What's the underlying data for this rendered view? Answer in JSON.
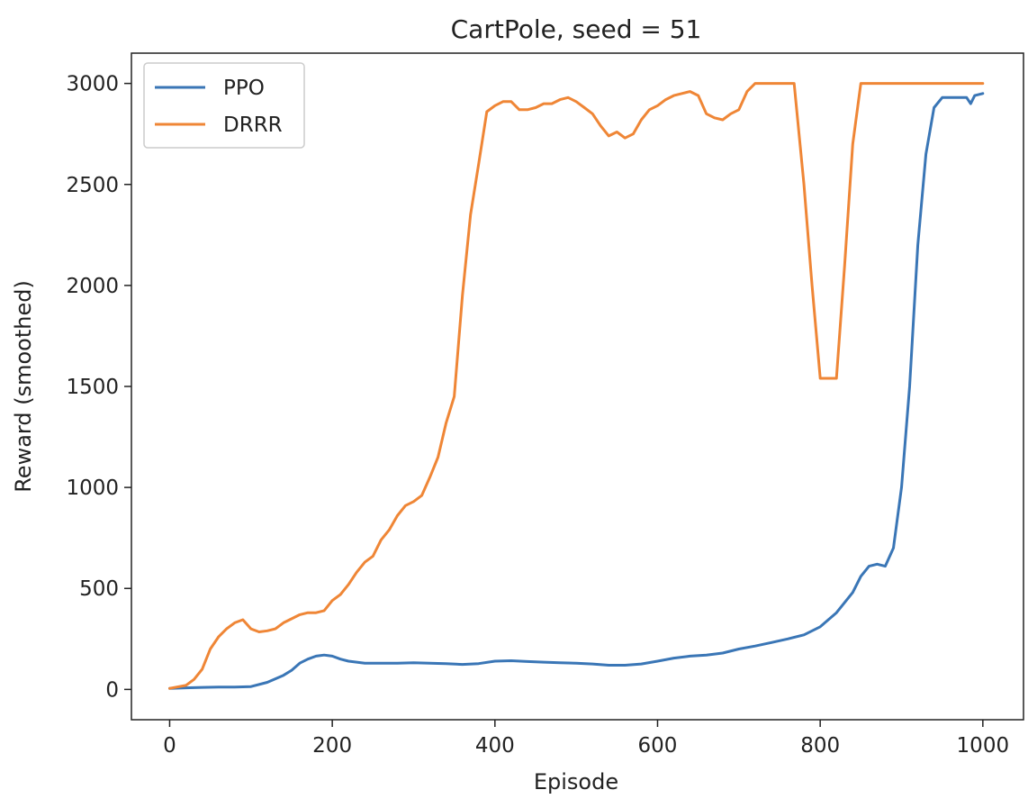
{
  "chart_data": {
    "type": "line",
    "title": "CartPole, seed = 51",
    "xlabel": "Episode",
    "ylabel": "Reward (smoothed)",
    "xlim": [
      -47,
      1050
    ],
    "ylim": [
      -150,
      3150
    ],
    "xticks": [
      0,
      200,
      400,
      600,
      800,
      1000
    ],
    "yticks": [
      0,
      500,
      1000,
      1500,
      2000,
      2500,
      3000
    ],
    "grid": false,
    "legend_position": "top-left",
    "series": [
      {
        "name": "PPO",
        "color": "#3a76b6",
        "x": [
          0,
          20,
          40,
          60,
          80,
          100,
          120,
          140,
          150,
          160,
          170,
          180,
          190,
          200,
          210,
          220,
          240,
          260,
          280,
          300,
          320,
          340,
          360,
          380,
          400,
          420,
          440,
          460,
          480,
          500,
          520,
          540,
          560,
          580,
          600,
          620,
          640,
          660,
          680,
          700,
          720,
          740,
          760,
          780,
          800,
          820,
          840,
          850,
          860,
          870,
          880,
          890,
          900,
          910,
          920,
          930,
          940,
          950,
          960,
          970,
          980,
          985,
          990,
          1000
        ],
        "values": [
          5,
          8,
          10,
          12,
          12,
          14,
          35,
          70,
          95,
          130,
          150,
          165,
          170,
          165,
          150,
          140,
          130,
          130,
          130,
          132,
          130,
          128,
          124,
          128,
          140,
          142,
          138,
          135,
          132,
          130,
          126,
          120,
          120,
          126,
          140,
          155,
          165,
          170,
          180,
          200,
          215,
          232,
          250,
          270,
          310,
          380,
          480,
          560,
          610,
          620,
          610,
          700,
          1000,
          1500,
          2200,
          2650,
          2880,
          2930,
          2930,
          2930,
          2930,
          2900,
          2940,
          2950
        ]
      },
      {
        "name": "DRRR",
        "color": "#ef8636",
        "x": [
          0,
          20,
          30,
          40,
          50,
          60,
          70,
          80,
          90,
          100,
          110,
          120,
          130,
          140,
          150,
          160,
          170,
          180,
          190,
          200,
          210,
          220,
          230,
          240,
          250,
          260,
          270,
          280,
          290,
          300,
          310,
          320,
          330,
          340,
          350,
          360,
          370,
          380,
          390,
          400,
          410,
          420,
          430,
          440,
          450,
          460,
          470,
          480,
          490,
          500,
          510,
          520,
          530,
          540,
          550,
          560,
          570,
          580,
          590,
          600,
          610,
          620,
          630,
          640,
          650,
          660,
          670,
          680,
          690,
          700,
          710,
          720,
          730,
          740,
          750,
          760,
          768,
          780,
          790,
          800,
          805,
          815,
          820,
          830,
          840,
          850,
          860,
          870,
          880,
          900,
          920,
          940,
          960,
          980,
          1000
        ],
        "values": [
          5,
          20,
          50,
          100,
          200,
          260,
          300,
          330,
          345,
          300,
          285,
          290,
          300,
          330,
          350,
          370,
          380,
          380,
          390,
          440,
          470,
          520,
          580,
          630,
          660,
          740,
          790,
          860,
          910,
          930,
          960,
          1050,
          1150,
          1320,
          1450,
          1950,
          2350,
          2600,
          2860,
          2890,
          2910,
          2910,
          2870,
          2870,
          2880,
          2900,
          2900,
          2920,
          2930,
          2910,
          2880,
          2850,
          2790,
          2740,
          2760,
          2730,
          2750,
          2820,
          2870,
          2890,
          2920,
          2940,
          2950,
          2960,
          2940,
          2850,
          2830,
          2820,
          2850,
          2870,
          2960,
          3000,
          3000,
          3000,
          3000,
          3000,
          3000,
          2500,
          2000,
          1540,
          1540,
          1540,
          1540,
          2100,
          2700,
          3000,
          3000,
          3000,
          3000,
          3000,
          3000,
          3000,
          3000,
          3000,
          3000
        ]
      }
    ]
  }
}
